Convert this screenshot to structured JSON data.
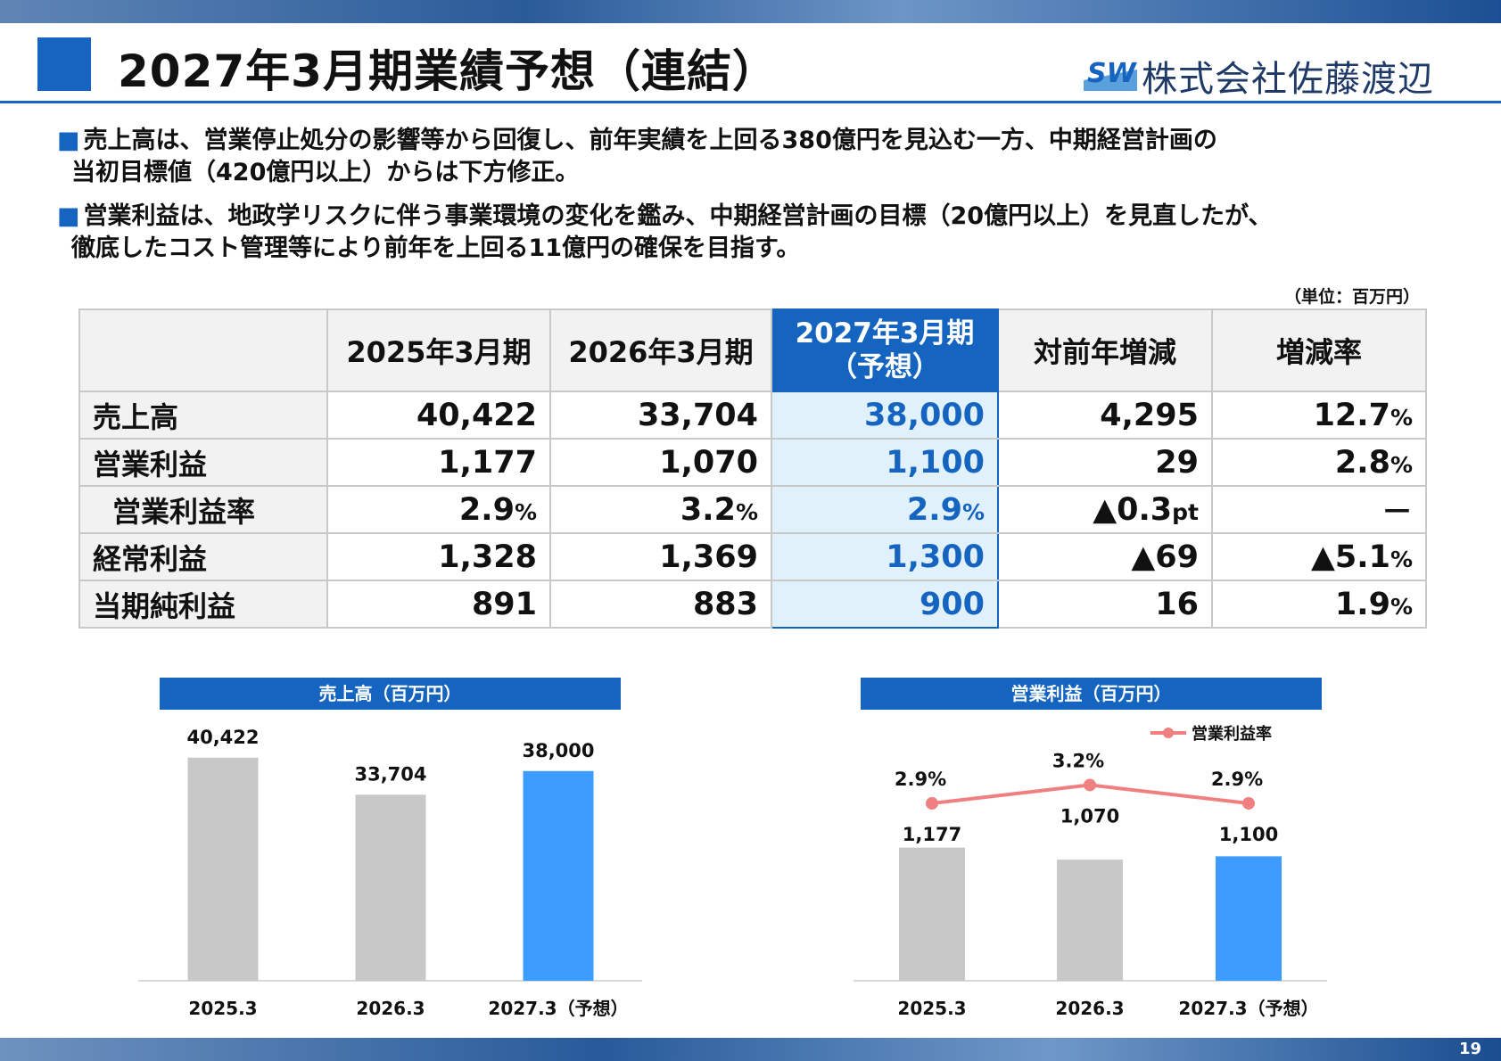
{
  "header": {
    "title": "2027年3月期業績予想（連結）",
    "company": "株式会社佐藤渡辺",
    "logo_text": "SW"
  },
  "bullets": [
    {
      "marker": "■",
      "line1": "売上高は、営業停止処分の影響等から回復し、前年実績を上回る380億円を見込む一方、中期経営計画の",
      "line2": "当初目標値（420億円以上）からは下方修正。"
    },
    {
      "marker": "■",
      "line1": "営業利益は、地政学リスクに伴う事業環境の変化を鑑み、中期経営計画の目標（20億円以上）を見直したが、",
      "line2": "徹底したコスト管理等により前年を上回る11億円の確保を目指す。"
    }
  ],
  "table": {
    "unit": "（単位：百万円）",
    "headers": [
      "",
      "2025年3月期",
      "2026年3月期",
      "2027年3月期",
      "（予想）",
      "対前年増減",
      "増減率"
    ],
    "rows": [
      {
        "label": "売上高",
        "c1": "40,422",
        "c2": "33,704",
        "c3": "38,000",
        "c4": "4,295",
        "c4_unit": "",
        "c5": "12.7",
        "c5_unit": "%"
      },
      {
        "label": "営業利益",
        "c1": "1,177",
        "c2": "1,070",
        "c3": "1,100",
        "c4": "29",
        "c4_unit": "",
        "c5": "2.8",
        "c5_unit": "%"
      },
      {
        "label": "営業利益率",
        "c1": "2.9",
        "c1_unit": "%",
        "c2": "3.2",
        "c2_unit": "%",
        "c3": "2.9",
        "c3_unit": "%",
        "c4": "▲0.3",
        "c4_unit": "pt",
        "c5": "－",
        "c5_unit": ""
      },
      {
        "label": "経常利益",
        "c1": "1,328",
        "c2": "1,369",
        "c3": "1,300",
        "c4": "▲69",
        "c4_unit": "",
        "c5": "▲5.1",
        "c5_unit": "%"
      },
      {
        "label": "当期純利益",
        "c1": "891",
        "c2": "883",
        "c3": "900",
        "c4": "16",
        "c4_unit": "",
        "c5": "1.9",
        "c5_unit": "%"
      }
    ]
  },
  "chart_data": [
    {
      "type": "bar",
      "title": "売上高（百万円）",
      "categories": [
        "2025.3",
        "2026.3",
        "2027.3（予想）"
      ],
      "values": [
        40422,
        33704,
        38000
      ],
      "labels": [
        "40,422",
        "33,704",
        "38,000"
      ],
      "ylim": [
        0,
        42000
      ],
      "colors": [
        "#c8c8c8",
        "#c8c8c8",
        "#3d9cff"
      ],
      "grid": false
    },
    {
      "type": "bar",
      "title": "営業利益（百万円）",
      "categories": [
        "2025.3",
        "2026.3",
        "2027.3（予想）"
      ],
      "values": [
        1177,
        1070,
        1100
      ],
      "labels": [
        "1,177",
        "1,070",
        "1,100"
      ],
      "ylim": [
        0,
        1300
      ],
      "colors": [
        "#c8c8c8",
        "#c8c8c8",
        "#3d9cff"
      ],
      "line_series": {
        "name": "営業利益率",
        "values": [
          2.9,
          3.2,
          2.9
        ],
        "labels": [
          "2.9%",
          "3.2%",
          "2.9%"
        ],
        "ylim": [
          0,
          3.6
        ],
        "color": "#f08080"
      },
      "legend": "top-right",
      "grid": false
    }
  ],
  "footer": {
    "page_number": "19"
  }
}
